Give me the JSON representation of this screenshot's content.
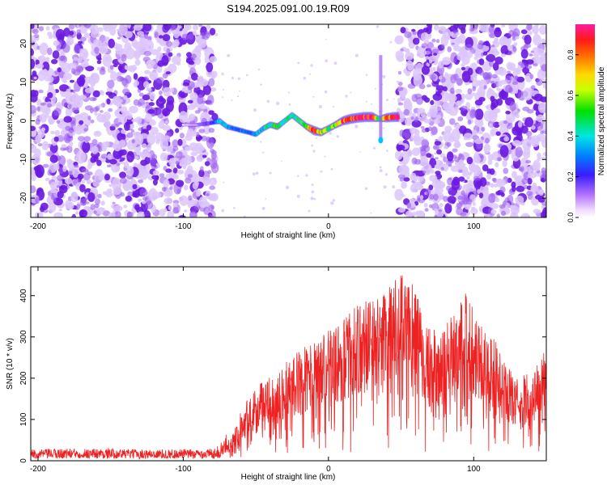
{
  "title": "S194.2025.091.00.19.R09",
  "colors": {
    "snr_line": "#ee2222",
    "speckle_strong": "#6a1ae0",
    "speckle_mid": "#9b5cf0",
    "speckle_faint": "#dcc6fa",
    "axis": "#000000",
    "background": "#ffffff"
  },
  "chart_data": [
    {
      "type": "heatmap",
      "xlabel": "Height of straight line (km)",
      "ylabel": "Frequency (Hz)",
      "xlim": [
        -205,
        150
      ],
      "ylim": [
        -25,
        25
      ],
      "xticks": [
        -200,
        -100,
        0,
        100
      ],
      "yticks": [
        -20,
        -10,
        0,
        10,
        20
      ],
      "colorbar": {
        "label": "Normalized spectral amplitude",
        "range": [
          0,
          0.95
        ],
        "ticks": [
          0.0,
          0.2,
          0.4,
          0.6,
          0.8
        ],
        "tick_labels": [
          "0.0",
          "0.2",
          "0.4",
          "0.6",
          "0.8"
        ],
        "colormap": "rainbow (magenta-blue-cyan-green-yellow-red-pink)"
      },
      "noise_regions": [
        [
          -205,
          -78
        ],
        [
          48,
          150
        ]
      ],
      "trace": {
        "x": [
          -100,
          -90,
          -80,
          -75,
          -70,
          -65,
          -60,
          -55,
          -50,
          -45,
          -40,
          -35,
          -30,
          -25,
          -20,
          -15,
          -10,
          -5,
          0,
          5,
          10,
          15,
          20,
          25,
          30,
          35,
          40,
          45,
          48
        ],
        "y": [
          -1,
          -1,
          -0.5,
          0,
          -1.5,
          -2,
          -2.5,
          -3,
          -3.5,
          -2,
          -1,
          -1.5,
          0,
          1.5,
          0,
          -1.5,
          -2.5,
          -3,
          -2,
          -1,
          0,
          0.5,
          0.8,
          1,
          1,
          0.5,
          0.8,
          1,
          1
        ],
        "amplitude": [
          0.05,
          0.1,
          0.2,
          0.45,
          0.35,
          0.3,
          0.3,
          0.25,
          0.35,
          0.4,
          0.45,
          0.55,
          0.4,
          0.45,
          0.5,
          0.55,
          0.85,
          0.65,
          0.55,
          0.6,
          0.8,
          0.9,
          0.9,
          0.92,
          0.92,
          0.4,
          0.8,
          0.9,
          0.9
        ]
      },
      "spike": {
        "x": 36,
        "y_range": [
          -5.5,
          17
        ]
      }
    },
    {
      "type": "line",
      "xlabel": "Height of straight line (km)",
      "ylabel": "SNR (10 * v/v)",
      "xlim": [
        -205,
        150
      ],
      "ylim": [
        0,
        470
      ],
      "xticks": [
        -200,
        -100,
        0,
        100
      ],
      "yticks": [
        0,
        100,
        200,
        300,
        400
      ],
      "series": [
        {
          "x": [
            -205,
            -180,
            -160,
            -140,
            -120,
            -100,
            -90,
            -80,
            -75,
            -70,
            -65,
            -60,
            -55,
            -50,
            -45,
            -40,
            -35,
            -30,
            -25,
            -20,
            -15,
            -10,
            -5,
            0,
            5,
            10,
            15,
            20,
            25,
            30,
            35,
            40,
            45,
            50,
            55,
            60,
            65,
            70,
            75,
            80,
            85,
            90,
            95,
            100,
            105,
            110,
            115,
            120,
            125,
            130,
            135,
            140,
            145,
            150
          ],
          "y": [
            18,
            20,
            20,
            19,
            18,
            19,
            18,
            20,
            25,
            45,
            75,
            110,
            140,
            165,
            175,
            185,
            200,
            215,
            230,
            245,
            255,
            265,
            275,
            290,
            300,
            315,
            330,
            345,
            360,
            370,
            380,
            390,
            400,
            410,
            400,
            390,
            340,
            300,
            280,
            290,
            340,
            360,
            370,
            350,
            310,
            290,
            270,
            230,
            200,
            180,
            190,
            200,
            220,
            250
          ]
        }
      ]
    }
  ]
}
